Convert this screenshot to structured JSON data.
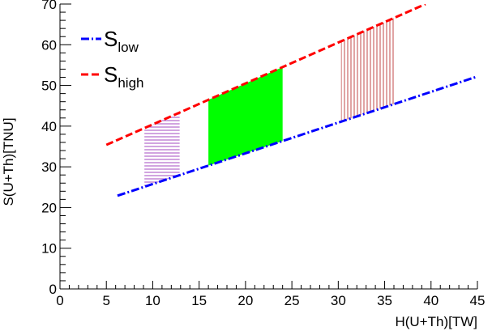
{
  "chart_data": {
    "type": "line",
    "xlabel": "H(U+Th)[TW]",
    "ylabel": "S(U+Th)[TNU]",
    "xlim": [
      0,
      45
    ],
    "ylim": [
      0,
      70
    ],
    "x_ticks": [
      0,
      5,
      10,
      15,
      20,
      25,
      30,
      35,
      40,
      45
    ],
    "y_ticks": [
      0,
      10,
      20,
      30,
      40,
      50,
      60,
      70
    ],
    "x_tick_labels": [
      "0",
      "5",
      "10",
      "15",
      "20",
      "25",
      "30",
      "35",
      "40",
      "45"
    ],
    "y_tick_labels": [
      "0",
      "10",
      "20",
      "30",
      "40",
      "50",
      "60",
      "70"
    ],
    "grid": false,
    "legend_position": "top-left",
    "series": [
      {
        "name": "S_low",
        "label_main": "S",
        "label_sub": "low",
        "color": "#0000ff",
        "style": "dash-dot",
        "x": [
          6.2,
          45
        ],
        "y": [
          22.9,
          52.2
        ]
      },
      {
        "name": "S_high",
        "label_main": "S",
        "label_sub": "high",
        "color": "#ff0000",
        "style": "dashed",
        "x": [
          5.0,
          39.4
        ],
        "y": [
          35.4,
          70.0
        ]
      }
    ],
    "bands": [
      {
        "x_range": [
          9.1,
          12.9
        ],
        "fill": "horizontal-hatch",
        "color": "#b266cc"
      },
      {
        "x_range": [
          16.0,
          24.0
        ],
        "fill": "solid",
        "color": "#00ff00"
      },
      {
        "x_range": [
          30.3,
          36.0
        ],
        "fill": "vertical-hatch",
        "color": "#cc6666"
      }
    ]
  }
}
